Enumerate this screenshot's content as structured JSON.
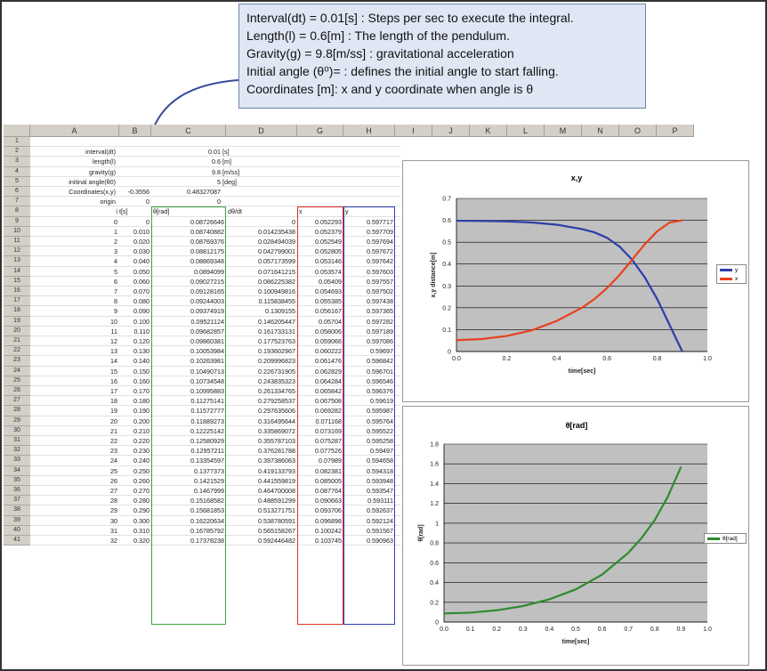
{
  "callout": {
    "lines": [
      "Interval(dt) = 0.01[s] : Steps per sec to execute the integral.",
      "Length(l) = 0.6[m] : The length of the pendulum.",
      "Gravity(g) = 9.8[m/ss] : gravitational acceleration",
      "Initial angle (θ⁰)=  : defines the initial angle to start falling.",
      "Coordinates [m]: x and y coordinate when angle is θ"
    ]
  },
  "columns": [
    "A",
    "B",
    "C",
    "D",
    "G",
    "H",
    "I",
    "J",
    "K",
    "L",
    "M",
    "N",
    "O",
    "P"
  ],
  "params": [
    {
      "label": "interval(dt)",
      "value": "0.01",
      "unit": "[s]"
    },
    {
      "label": "length(l)",
      "value": "0.6",
      "unit": "[m]"
    },
    {
      "label": "gravity(g)",
      "value": "9.8",
      "unit": "[m/ss]"
    },
    {
      "label": "initinal angle(θ0)",
      "value": "5",
      "unit": "[deg]"
    }
  ],
  "coords": {
    "label": "Coordinates(x,y)",
    "x": "-0.3556",
    "y": "0.48327087"
  },
  "origin": {
    "label": "origin",
    "x": "0",
    "y": "0"
  },
  "table_headers": {
    "i": "i",
    "t": "t[s]",
    "theta": "θ[rad]",
    "dtheta": "dθ/dt",
    "x": "x",
    "y": "y"
  },
  "table": [
    [
      "0",
      "0",
      "0.08726646",
      "0",
      "0.052293",
      "0.597717"
    ],
    [
      "1",
      "0.010",
      "0.08740882",
      "0.014235438",
      "0.052379",
      "0.597709"
    ],
    [
      "2",
      "0.020",
      "0.08769376",
      "0.028494039",
      "0.052549",
      "0.597694"
    ],
    [
      "3",
      "0.030",
      "0.08812175",
      "0.042799001",
      "0.052805",
      "0.597672"
    ],
    [
      "4",
      "0.040",
      "0.08869348",
      "0.057173599",
      "0.053146",
      "0.597642"
    ],
    [
      "5",
      "0.050",
      "0.0894099",
      "0.071641215",
      "0.053574",
      "0.597603"
    ],
    [
      "6",
      "0.060",
      "0.09027215",
      "0.086225382",
      "0.05409",
      "0.597557"
    ],
    [
      "7",
      "0.070",
      "0.09128165",
      "0.100949816",
      "0.054693",
      "0.597502"
    ],
    [
      "8",
      "0.080",
      "0.09244003",
      "0.115838455",
      "0.055385",
      "0.597438"
    ],
    [
      "9",
      "0.090",
      "0.09374919",
      "0.1309155",
      "0.056167",
      "0.597365"
    ],
    [
      "10",
      "0.100",
      "0.09521124",
      "0.146205447",
      "0.05704",
      "0.597282"
    ],
    [
      "11",
      "0.110",
      "0.09682857",
      "0.161733131",
      "0.058006",
      "0.597189"
    ],
    [
      "12",
      "0.120",
      "0.09860381",
      "0.177523763",
      "0.059066",
      "0.597086"
    ],
    [
      "13",
      "0.130",
      "0.10053984",
      "0.193602967",
      "0.060222",
      "0.59697"
    ],
    [
      "14",
      "0.140",
      "0.10263981",
      "0.209996823",
      "0.061476",
      "0.596842"
    ],
    [
      "15",
      "0.150",
      "0.10490713",
      "0.226731905",
      "0.062829",
      "0.596701"
    ],
    [
      "16",
      "0.160",
      "0.10734548",
      "0.243835323",
      "0.064284",
      "0.596546"
    ],
    [
      "17",
      "0.170",
      "0.10995883",
      "0.261334765",
      "0.065842",
      "0.596376"
    ],
    [
      "18",
      "0.180",
      "0.11275141",
      "0.279258537",
      "0.067508",
      "0.59619"
    ],
    [
      "19",
      "0.190",
      "0.11572777",
      "0.297635606",
      "0.069282",
      "0.595987"
    ],
    [
      "20",
      "0.200",
      "0.11889273",
      "0.316495644",
      "0.071168",
      "0.595764"
    ],
    [
      "21",
      "0.210",
      "0.12225142",
      "0.335869072",
      "0.073169",
      "0.595522"
    ],
    [
      "22",
      "0.220",
      "0.12580929",
      "0.355787103",
      "0.075287",
      "0.595258"
    ],
    [
      "23",
      "0.230",
      "0.12957211",
      "0.376281788",
      "0.077526",
      "0.59497"
    ],
    [
      "24",
      "0.240",
      "0.13354597",
      "0.397386063",
      "0.07989",
      "0.594658"
    ],
    [
      "25",
      "0.250",
      "0.1377373",
      "0.419133793",
      "0.082381",
      "0.594318"
    ],
    [
      "26",
      "0.260",
      "0.1421529",
      "0.441559819",
      "0.085005",
      "0.593948"
    ],
    [
      "27",
      "0.270",
      "0.1467999",
      "0.464700008",
      "0.087764",
      "0.593547"
    ],
    [
      "28",
      "0.280",
      "0.15168582",
      "0.488591299",
      "0.090663",
      "0.593111"
    ],
    [
      "29",
      "0.290",
      "0.15681853",
      "0.513271751",
      "0.093706",
      "0.592637"
    ],
    [
      "30",
      "0.300",
      "0.16220634",
      "0.538780591",
      "0.096898",
      "0.592124"
    ],
    [
      "31",
      "0.310",
      "0.16785792",
      "0.565158267",
      "0.100242",
      "0.591567"
    ],
    [
      "32",
      "0.320",
      "0.17378238",
      "0.592446482",
      "0.103745",
      "0.590963"
    ]
  ],
  "row_numbers": [
    "1",
    "2",
    "3",
    "4",
    "5",
    "6",
    "7",
    "8",
    "9",
    "10",
    "11",
    "12",
    "13",
    "14",
    "15",
    "16",
    "17",
    "18",
    "19",
    "20",
    "21",
    "22",
    "23",
    "24",
    "25",
    "26",
    "27",
    "28",
    "29",
    "30",
    "31",
    "32",
    "33",
    "34",
    "35",
    "36",
    "37",
    "38",
    "39",
    "40",
    "41"
  ],
  "colors": {
    "x_series": "#e8401c",
    "y_series": "#2b3fa8",
    "theta_series": "#2e8b2e",
    "plot_bg": "#c0c0c0",
    "callout_bg": "#dfe6f4",
    "theta_col_border": "#3aa53a",
    "x_col_border": "#e03020",
    "y_col_border": "#3040b0"
  },
  "chart_data": [
    {
      "type": "line",
      "title": "x,y",
      "xlabel": "time[sec]",
      "ylabel": "x,y distance[m]",
      "xlim": [
        0,
        1.0
      ],
      "ylim": [
        0,
        0.7
      ],
      "xticks": [
        "0.0",
        "0.2",
        "0.4",
        "0.6",
        "0.8",
        "1.0"
      ],
      "yticks": [
        "0",
        "0.1",
        "0.2",
        "0.3",
        "0.4",
        "0.5",
        "0.6",
        "0.7"
      ],
      "legend_position": "right",
      "series": [
        {
          "name": "y",
          "color": "#2b3fa8",
          "x": [
            0,
            0.1,
            0.2,
            0.3,
            0.4,
            0.5,
            0.55,
            0.6,
            0.65,
            0.7,
            0.75,
            0.8,
            0.85,
            0.9
          ],
          "values": [
            0.598,
            0.597,
            0.595,
            0.59,
            0.58,
            0.56,
            0.545,
            0.52,
            0.48,
            0.42,
            0.34,
            0.24,
            0.12,
            0.0
          ]
        },
        {
          "name": "x",
          "color": "#e8401c",
          "x": [
            0,
            0.1,
            0.2,
            0.3,
            0.4,
            0.5,
            0.55,
            0.6,
            0.65,
            0.7,
            0.75,
            0.8,
            0.85,
            0.9
          ],
          "values": [
            0.052,
            0.057,
            0.071,
            0.097,
            0.14,
            0.2,
            0.24,
            0.29,
            0.35,
            0.42,
            0.49,
            0.55,
            0.59,
            0.6
          ]
        }
      ]
    },
    {
      "type": "line",
      "title": "θ[rad]",
      "xlabel": "time[sec]",
      "ylabel": "θ[rad]",
      "xlim": [
        0,
        1.0
      ],
      "ylim": [
        0,
        1.8
      ],
      "xticks": [
        "0.0",
        "0.1",
        "0.2",
        "0.3",
        "0.4",
        "0.5",
        "0.6",
        "0.7",
        "0.8",
        "0.9",
        "1.0"
      ],
      "yticks": [
        "0",
        "0.2",
        "0.4",
        "0.6",
        "0.8",
        "1",
        "1.2",
        "1.4",
        "1.6",
        "1.8"
      ],
      "legend_position": "right",
      "series": [
        {
          "name": "θ[rad]",
          "color": "#2e8b2e",
          "x": [
            0,
            0.1,
            0.2,
            0.3,
            0.4,
            0.5,
            0.6,
            0.7,
            0.75,
            0.8,
            0.85,
            0.9
          ],
          "values": [
            0.087,
            0.095,
            0.119,
            0.162,
            0.23,
            0.33,
            0.48,
            0.7,
            0.85,
            1.03,
            1.27,
            1.57
          ]
        }
      ]
    }
  ]
}
